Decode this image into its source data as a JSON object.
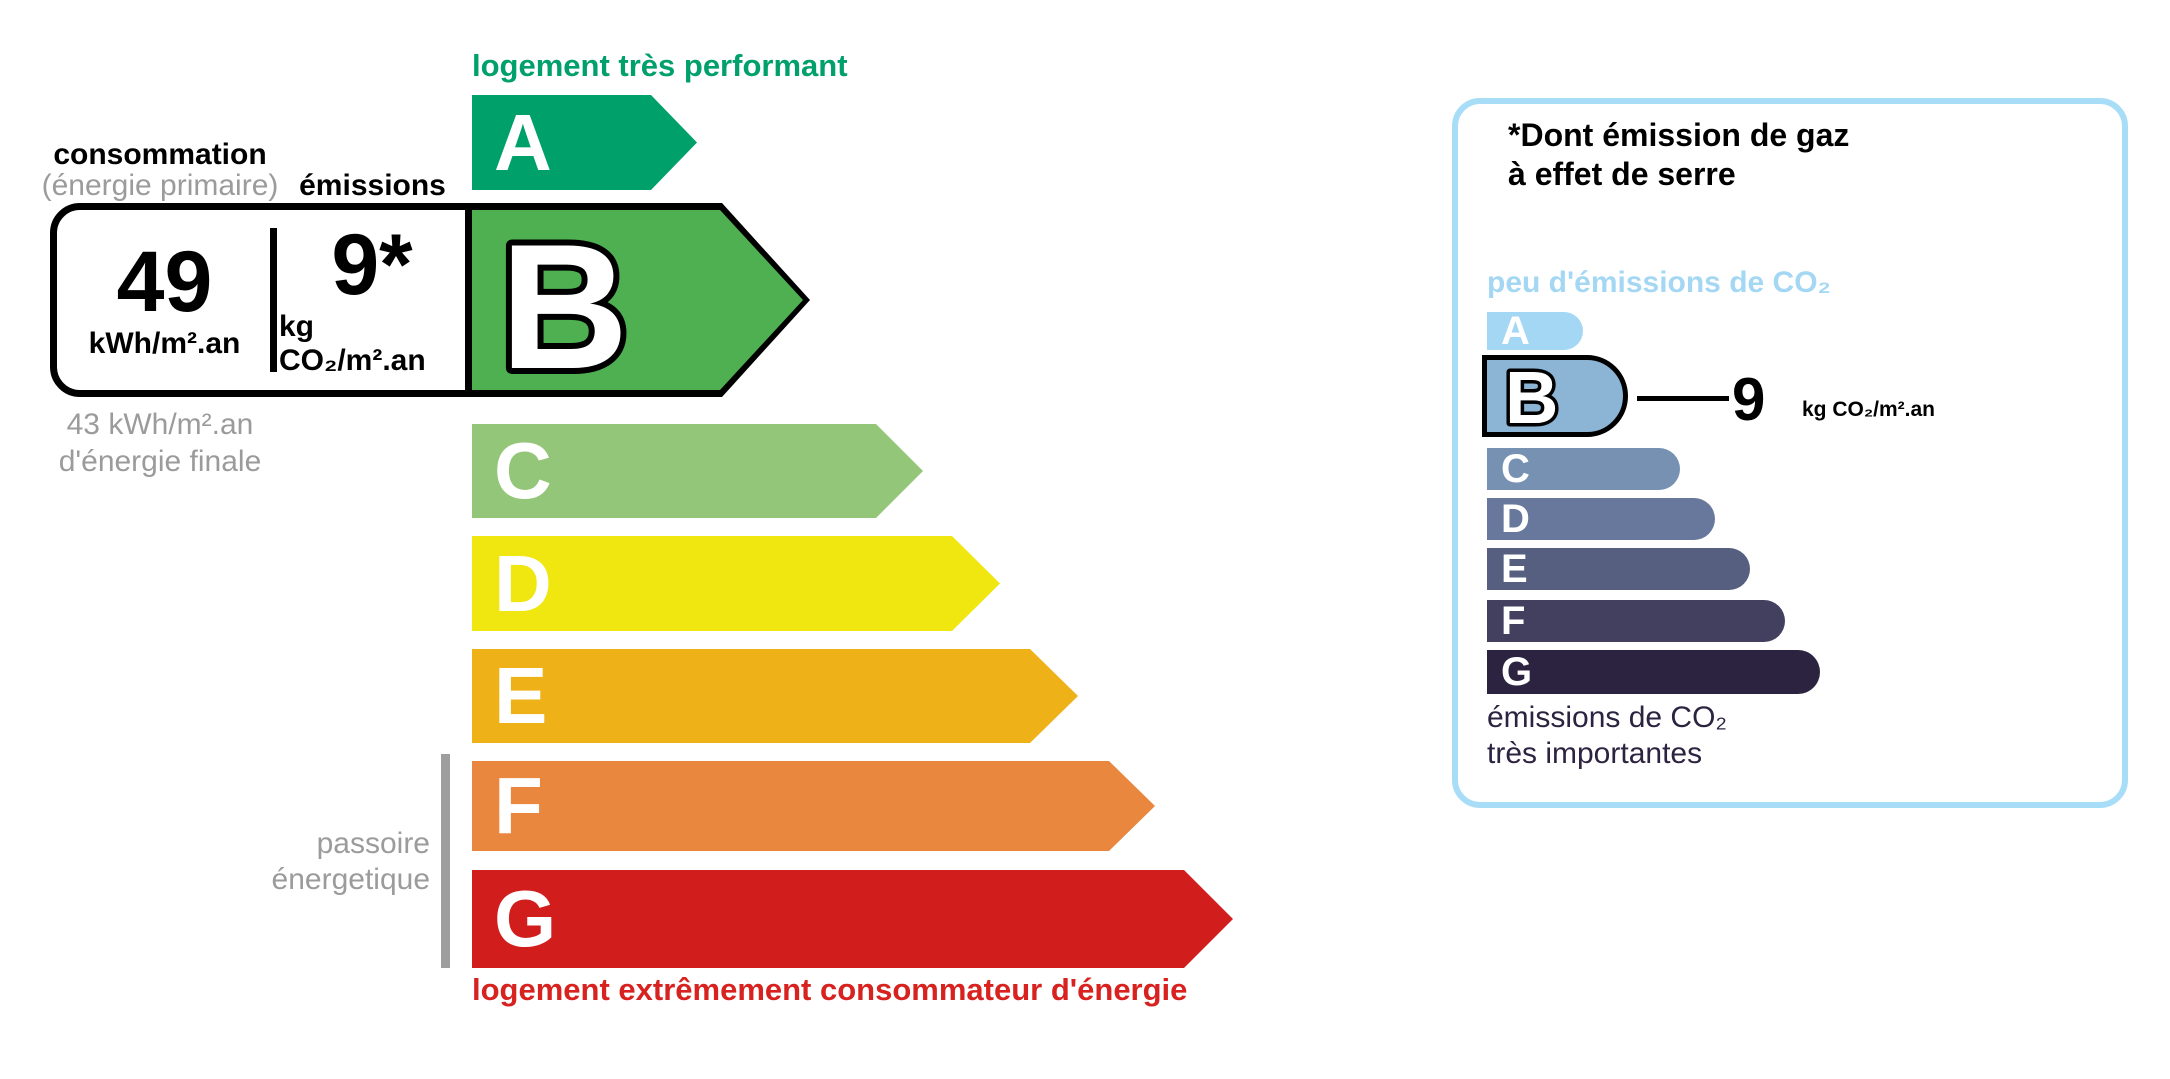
{
  "energy_scale": {
    "top_caption": "logement très performant",
    "bottom_caption": "logement extrêmement consommateur d'énergie",
    "sieve_caption_line1": "passoire",
    "sieve_caption_line2": "énergetique",
    "header": {
      "consumption_label": "consommation",
      "consumption_sublabel": "(énergie primaire)",
      "emissions_label": "émissions"
    },
    "values": {
      "consumption_value": "49",
      "consumption_unit": "kWh/m².an",
      "emissions_value": "9*",
      "emissions_unit": "kg CO₂/m².an"
    },
    "final_energy_line1": "43 kWh/m².an",
    "final_energy_line2": "d'énergie finale",
    "selected_class": "B",
    "classes": [
      {
        "letter": "A",
        "color": "#00a06b"
      },
      {
        "letter": "B",
        "color": "#4fb052"
      },
      {
        "letter": "C",
        "color": "#93c678"
      },
      {
        "letter": "D",
        "color": "#f0e610"
      },
      {
        "letter": "E",
        "color": "#eeb117"
      },
      {
        "letter": "F",
        "color": "#e8873d"
      },
      {
        "letter": "G",
        "color": "#d21d1d"
      }
    ],
    "caption_colors": {
      "top_green": "#00a06d",
      "bottom_red": "#d7221f",
      "gray": "#9b9b9b"
    }
  },
  "co2_panel": {
    "title_line1": "*Dont émission de gaz",
    "title_line2": "à effet de serre",
    "top_caption": "peu d'émissions de CO₂",
    "bottom_caption_line1": "émissions de CO₂",
    "bottom_caption_line2": "très importantes",
    "selected_class": "B",
    "value": "9",
    "value_unit": "kg CO₂/m².an",
    "border_color": "#a8ddf8",
    "top_caption_color": "#a4d7f4",
    "bottom_caption_color": "#2c2340",
    "classes": [
      {
        "letter": "A",
        "color": "#a4d7f4"
      },
      {
        "letter": "B",
        "color": "#8cb4d4"
      },
      {
        "letter": "C",
        "color": "#7691b2"
      },
      {
        "letter": "D",
        "color": "#68789c"
      },
      {
        "letter": "E",
        "color": "#575f80"
      },
      {
        "letter": "F",
        "color": "#423f5f"
      },
      {
        "letter": "G",
        "color": "#2c2340"
      }
    ]
  }
}
